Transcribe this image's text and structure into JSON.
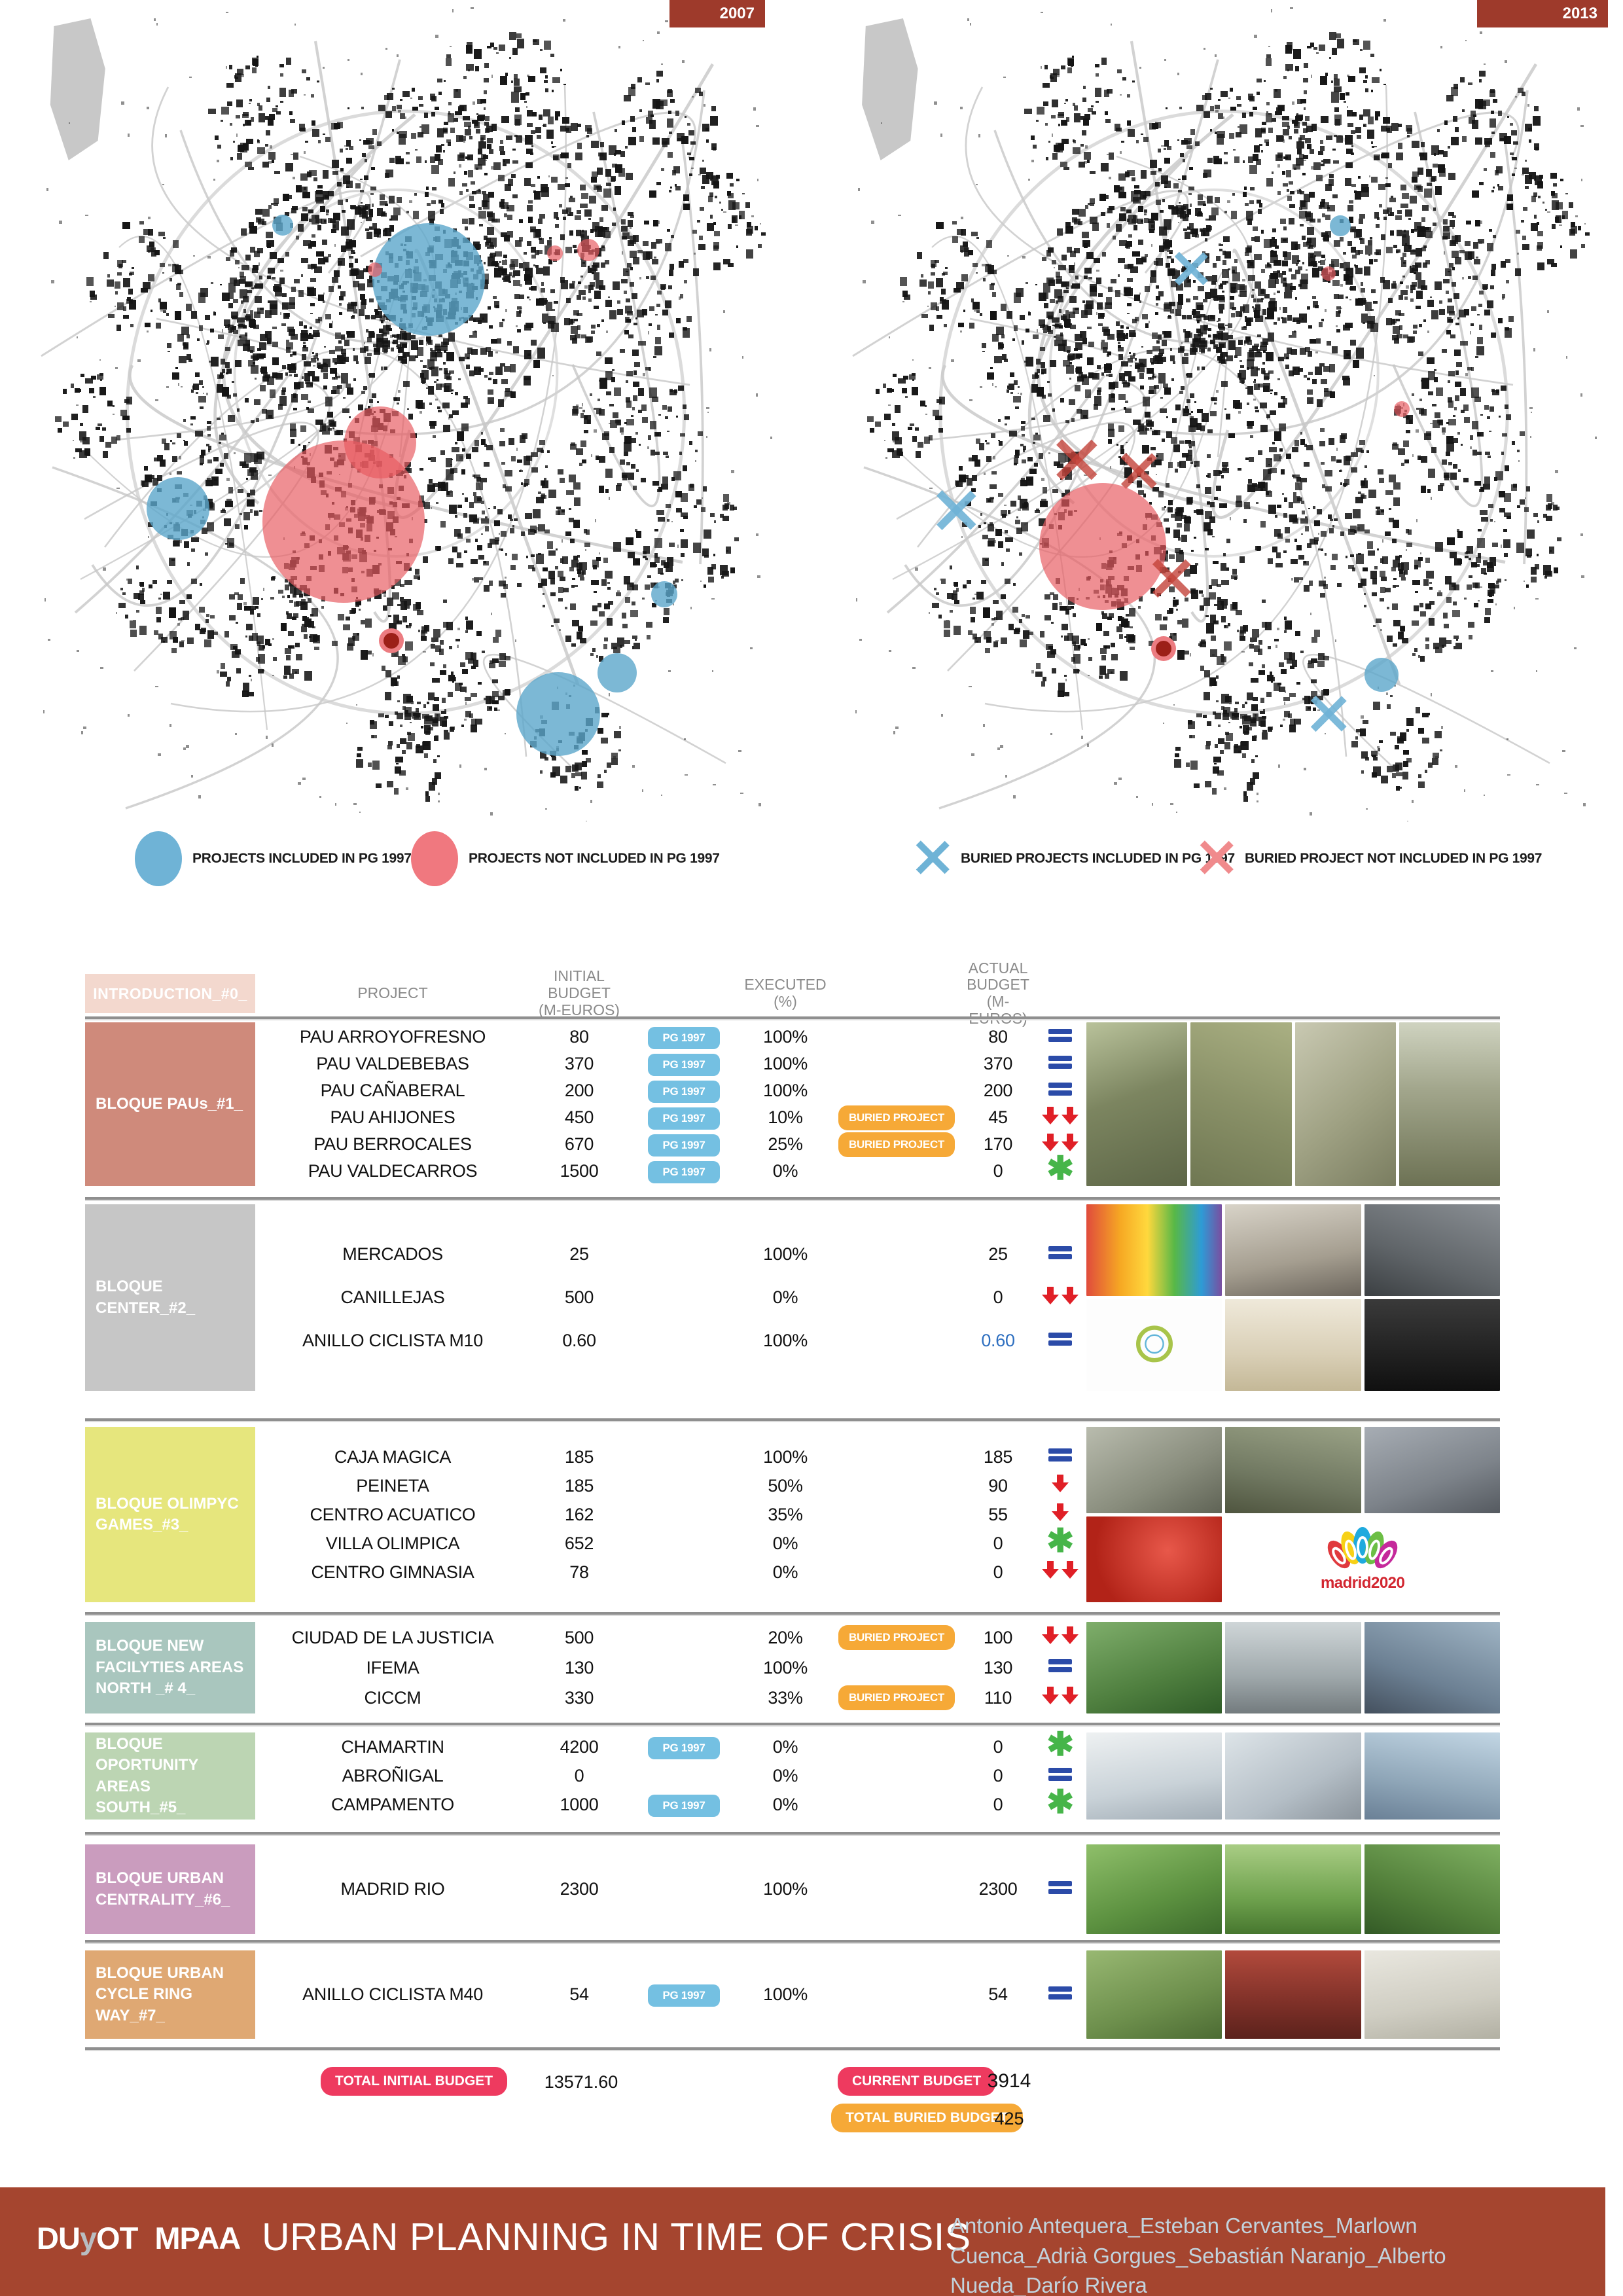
{
  "maps": {
    "left": {
      "year": "2007",
      "markers": [
        {
          "type": "circle",
          "color": "blue",
          "x": 33.2,
          "y": 26.8,
          "r": 16
        },
        {
          "type": "circle",
          "color": "blue",
          "x": 53.1,
          "y": 33.5,
          "r": 86
        },
        {
          "type": "circle",
          "color": "red",
          "x": 45.8,
          "y": 32.3,
          "r": 11
        },
        {
          "type": "circle",
          "color": "red",
          "x": 70.4,
          "y": 30.3,
          "r": 12
        },
        {
          "type": "circle",
          "color": "red",
          "x": 74.9,
          "y": 29.9,
          "r": 17
        },
        {
          "type": "circle",
          "color": "blue",
          "x": 18.9,
          "y": 61.6,
          "r": 48
        },
        {
          "type": "circle",
          "color": "red",
          "x": 41.5,
          "y": 63.2,
          "r": 124
        },
        {
          "type": "circle",
          "color": "red",
          "x": 46.5,
          "y": 53.5,
          "r": 55
        },
        {
          "type": "dot",
          "color": "red",
          "x": 48.0,
          "y": 77.8,
          "r": 12
        },
        {
          "type": "circle",
          "color": "blue",
          "x": 70.8,
          "y": 86.8,
          "r": 64
        },
        {
          "type": "circle",
          "color": "blue",
          "x": 78.8,
          "y": 81.8,
          "r": 30
        },
        {
          "type": "circle",
          "color": "blue",
          "x": 85.3,
          "y": 72.1,
          "r": 20
        }
      ]
    },
    "right": {
      "year": "2013",
      "markers": [
        {
          "type": "x",
          "color": "blue",
          "x": 45.6,
          "y": 32.4,
          "s": 54
        },
        {
          "type": "circle",
          "color": "blue",
          "x": 65.6,
          "y": 26.9,
          "r": 16
        },
        {
          "type": "circle",
          "color": "red",
          "x": 64.0,
          "y": 32.8,
          "r": 11
        },
        {
          "type": "circle",
          "color": "red",
          "x": 73.9,
          "y": 49.4,
          "r": 12
        },
        {
          "type": "x",
          "color": "red",
          "x": 30.3,
          "y": 55.8,
          "s": 66
        },
        {
          "type": "x",
          "color": "red",
          "x": 38.6,
          "y": 57.2,
          "s": 58
        },
        {
          "type": "circle",
          "color": "red",
          "x": 33.8,
          "y": 66.3,
          "r": 97
        },
        {
          "type": "x",
          "color": "red",
          "x": 43.0,
          "y": 70.4,
          "s": 62
        },
        {
          "type": "dot",
          "color": "red",
          "x": 41.9,
          "y": 78.8,
          "r": 12
        },
        {
          "type": "x",
          "color": "blue",
          "x": 14.1,
          "y": 62.0,
          "s": 64
        },
        {
          "type": "x",
          "color": "blue",
          "x": 64.0,
          "y": 87.0,
          "s": 58
        },
        {
          "type": "circle",
          "color": "blue",
          "x": 71.1,
          "y": 82.0,
          "r": 26
        }
      ]
    }
  },
  "legend": {
    "items": [
      {
        "mark": "circle",
        "color": "#6FB3D6",
        "label": "PROJECTS INCLUDED IN PG 1997"
      },
      {
        "mark": "circle",
        "color": "#F0787F",
        "label": "PROJECTS NOT INCLUDED IN PG 1997"
      },
      {
        "mark": "x",
        "color": "#6FB3D6",
        "label": "BURIED PROJECTS INCLUDED IN PG 1997"
      },
      {
        "mark": "x",
        "color": "#F08A8C",
        "label": "BURIED  PROJECT NOT INCLUDED IN PG 1997"
      }
    ]
  },
  "table": {
    "intro_label": "INTRODUCTION_#0_",
    "headers": {
      "project": "PROJECT",
      "initial": "INITIAL BUDGET\n(M-EUROS)",
      "executed": "EXECUTED (%)",
      "actual": "ACTUAL BUDGET\n(M-EUROS)"
    },
    "pg_badge": "PG 1997",
    "buried_badge": "BURIED PROJECT",
    "blocks": [
      {
        "label": "BLOQUE PAUs_#1_",
        "color": "#CF8A7B",
        "rows": [
          {
            "project": "PAU ARROYOFRESNO",
            "initial": "80",
            "pg": true,
            "executed": "100%",
            "buried": false,
            "actual": "80",
            "trend": "equal"
          },
          {
            "project": "PAU VALDEBEBAS",
            "initial": "370",
            "pg": true,
            "executed": "100%",
            "buried": false,
            "actual": "370",
            "trend": "equal"
          },
          {
            "project": "PAU CAÑABERAL",
            "initial": "200",
            "pg": true,
            "executed": "100%",
            "buried": false,
            "actual": "200",
            "trend": "equal"
          },
          {
            "project": "PAU AHIJONES",
            "initial": "450",
            "pg": true,
            "executed": "10%",
            "buried": true,
            "actual": "45",
            "trend": "down2"
          },
          {
            "project": "PAU BERROCALES",
            "initial": "670",
            "pg": true,
            "executed": "25%",
            "buried": true,
            "actual": "170",
            "trend": "down2"
          },
          {
            "project": "PAU VALDECARROS",
            "initial": "1500",
            "pg": true,
            "executed": "0%",
            "buried": false,
            "actual": "0",
            "trend": "asterisk"
          }
        ]
      },
      {
        "label": "BLOQUE CENTER_#2_",
        "color": "#C6C6C6",
        "rows": [
          {
            "project": "MERCADOS",
            "initial": "25",
            "pg": false,
            "executed": "100%",
            "buried": false,
            "actual": "25",
            "trend": "equal"
          },
          {
            "project": "CANILLEJAS",
            "initial": "500",
            "pg": false,
            "executed": "0%",
            "buried": false,
            "actual": "0",
            "trend": "down2"
          },
          {
            "project": "ANILLO CICLISTA M10",
            "initial": "0.60",
            "pg": false,
            "executed": "100%",
            "buried": false,
            "actual": "0.60",
            "actual_blue": true,
            "trend": "equal"
          }
        ]
      },
      {
        "label": "BLOQUE OLIMPYC\nGAMES_#3_",
        "color": "#E6E67D",
        "photo_logo_text": "madrid2020",
        "rows": [
          {
            "project": "CAJA MAGICA",
            "initial": "185",
            "pg": false,
            "executed": "100%",
            "buried": false,
            "actual": "185",
            "trend": "equal"
          },
          {
            "project": "PEINETA",
            "initial": "185",
            "pg": false,
            "executed": "50%",
            "buried": false,
            "actual": "90",
            "trend": "down1"
          },
          {
            "project": "CENTRO ACUATICO",
            "initial": "162",
            "pg": false,
            "executed": "35%",
            "buried": false,
            "actual": "55",
            "trend": "down1"
          },
          {
            "project": "VILLA OLIMPICA",
            "initial": "652",
            "pg": false,
            "executed": "0%",
            "buried": false,
            "actual": "0",
            "trend": "asterisk"
          },
          {
            "project": "CENTRO GIMNASIA",
            "initial": "78",
            "pg": false,
            "executed": "0%",
            "buried": false,
            "actual": "0",
            "trend": "down2"
          }
        ]
      },
      {
        "label": "BLOQUE NEW\nFACILYTIES AREAS\nNORTH _# 4_",
        "color": "#A9C6BE",
        "rows": [
          {
            "project": "CIUDAD DE LA JUSTICIA",
            "initial": "500",
            "pg": false,
            "executed": "20%",
            "buried": true,
            "actual": "100",
            "trend": "down2"
          },
          {
            "project": "IFEMA",
            "initial": "130",
            "pg": false,
            "executed": "100%",
            "buried": false,
            "actual": "130",
            "trend": "equal"
          },
          {
            "project": "CICCM",
            "initial": "330",
            "pg": false,
            "executed": "33%",
            "buried": true,
            "actual": "110",
            "trend": "down2"
          }
        ]
      },
      {
        "label": "BLOQUE OPORTUNITY\nAREAS SOUTH_#5_",
        "color": "#BCD5B3",
        "rows": [
          {
            "project": "CHAMARTIN",
            "initial": "4200",
            "pg": true,
            "executed": "0%",
            "buried": false,
            "actual": "0",
            "trend": "asterisk"
          },
          {
            "project": "ABROÑIGAL",
            "initial": "0",
            "pg": false,
            "executed": "0%",
            "buried": false,
            "actual": "0",
            "trend": "equal"
          },
          {
            "project": "CAMPAMENTO",
            "initial": "1000",
            "pg": true,
            "executed": "0%",
            "buried": false,
            "actual": "0",
            "trend": "asterisk"
          }
        ]
      },
      {
        "label": "BLOQUE URBAN\nCENTRALITY_#6_",
        "color": "#CA9CBE",
        "rows": [
          {
            "project": "MADRID RIO",
            "initial": "2300",
            "pg": false,
            "executed": "100%",
            "buried": false,
            "actual": "2300",
            "trend": "equal"
          }
        ]
      },
      {
        "label": "BLOQUE URBAN\nCYCLE RING WAY_#7_",
        "color": "#DFA873",
        "rows": [
          {
            "project": "ANILLO CICLISTA M40",
            "initial": "54",
            "pg": true,
            "executed": "100%",
            "buried": false,
            "actual": "54",
            "trend": "equal"
          }
        ]
      }
    ],
    "totals": {
      "initial_label": "TOTAL INITIAL BUDGET",
      "initial_value": "13571.60",
      "current_label": "CURRENT BUDGET",
      "current_value": "3914",
      "buried_label": "TOTAL BURIED BUDGET",
      "buried_value": "425",
      "pink": "#EE3A5F",
      "orange": "#F6A937"
    }
  },
  "footer": {
    "logo1_a": "DU",
    "logo1_b": "y",
    "logo1_c": "OT",
    "logo2": "MPAA",
    "title": "URBAN PLANNING IN TIME OF CRISIS",
    "authors": "Antonio Antequera_Esteban Cervantes_Marlown Cuenca_Adrià Gorgues_Sebastián Naranjo_Alberto Nueda_Darío Rivera"
  }
}
